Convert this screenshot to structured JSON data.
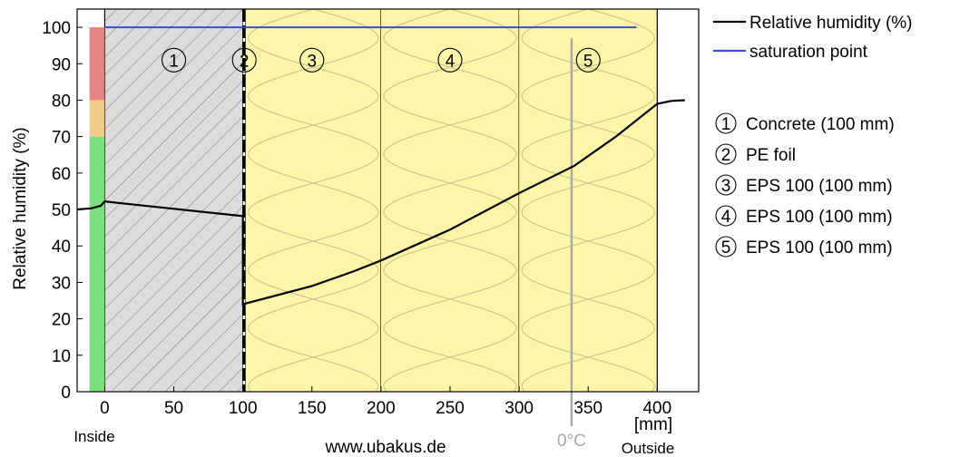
{
  "chart_data": {
    "type": "line",
    "ylabel": "Relative humidity (%)",
    "xlabel": "[mm]",
    "xlim": [
      -20,
      430
    ],
    "ylim": [
      0,
      105
    ],
    "x_ticks": [
      0,
      50,
      100,
      150,
      200,
      250,
      300,
      350,
      400
    ],
    "y_ticks": [
      0,
      10,
      20,
      30,
      40,
      50,
      60,
      70,
      80,
      90,
      100
    ],
    "x_tick_labels": [
      "0",
      "50",
      "100",
      "150",
      "200",
      "250",
      "300",
      "350",
      "400"
    ],
    "y_tick_labels": [
      "0",
      "10",
      "20",
      "30",
      "40",
      "50",
      "60",
      "70",
      "80",
      "90",
      "100"
    ],
    "grid": false,
    "legend_position": "outside-right",
    "series": [
      {
        "name": "Relative humidity (%)",
        "color": "#000000",
        "points": [
          [
            -20,
            50
          ],
          [
            -10,
            50.3
          ],
          [
            -3,
            51
          ],
          [
            0,
            52.2
          ],
          [
            100,
            48.2
          ],
          [
            100,
            24
          ],
          [
            120,
            26
          ],
          [
            150,
            29
          ],
          [
            180,
            33
          ],
          [
            200,
            36
          ],
          [
            250,
            44.5
          ],
          [
            300,
            54.5
          ],
          [
            340,
            62
          ],
          [
            370,
            70
          ],
          [
            400,
            79
          ],
          [
            410,
            79.8
          ],
          [
            420,
            80
          ]
        ]
      },
      {
        "name": "saturation point",
        "color": "#3b4cdc",
        "points": [
          [
            0,
            100
          ],
          [
            385,
            100
          ]
        ]
      }
    ],
    "rh_scale_bar": [
      {
        "from": 0,
        "to": 70,
        "color": "#7be07b"
      },
      {
        "from": 70,
        "to": 80,
        "color": "#f0cc88"
      },
      {
        "from": 80,
        "to": 100,
        "color": "#e88383"
      }
    ],
    "layers": [
      {
        "number": "1",
        "name": "Concrete (100 mm)",
        "from": 0,
        "to": 100,
        "material": "concrete",
        "fill": "#dcdcdc",
        "label_x": 50
      },
      {
        "number": "2",
        "name": "PE foil",
        "from": 100,
        "to": 102,
        "material": "foil",
        "fill": "#000000",
        "label_x": 101
      },
      {
        "number": "3",
        "name": "EPS 100 (100 mm)",
        "from": 102,
        "to": 200,
        "material": "insulation",
        "fill": "#fdf6a8",
        "label_x": 150
      },
      {
        "number": "4",
        "name": "EPS 100 (100 mm)",
        "from": 200,
        "to": 300,
        "material": "insulation",
        "fill": "#fdf6a8",
        "label_x": 250
      },
      {
        "number": "5",
        "name": "EPS 100 (100 mm)",
        "from": 300,
        "to": 400,
        "material": "insulation",
        "fill": "#fdf6a8",
        "label_x": 350
      }
    ],
    "zero_degree_x": 338,
    "zero_degree_label": "0°C",
    "inside_label": "Inside",
    "outside_label": "Outside",
    "watermark": "www.ubakus.de"
  }
}
